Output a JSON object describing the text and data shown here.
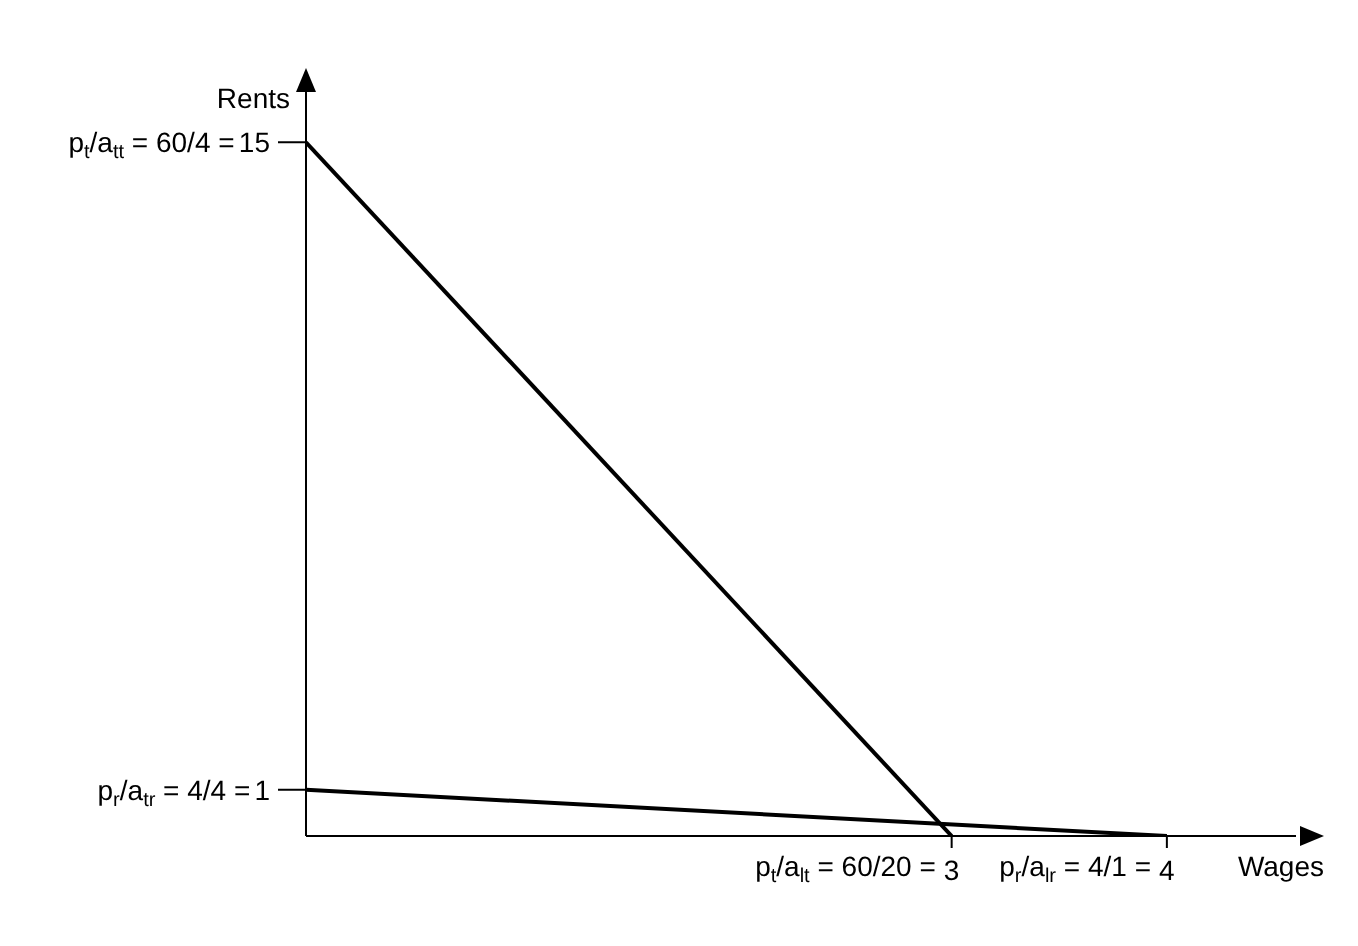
{
  "chart_data": {
    "type": "line",
    "xlabel": "Wages",
    "ylabel": "Rents",
    "xlim": [
      0,
      4.6
    ],
    "ylim": [
      0,
      16
    ],
    "xticks": [
      3,
      4
    ],
    "yticks": [
      1,
      15
    ],
    "annotations": [
      {
        "text": "p$_{t}$/a$_{tt}$ = 60/4 =",
        "x": 0,
        "y": 15
      },
      {
        "text": "p$_{r}$/a$_{tr}$ = 4/4 =",
        "x": 0,
        "y": 1
      },
      {
        "text": "p$_{t}$/a$_{lt}$ = 60/20 =",
        "x": 3,
        "y": 0
      },
      {
        "text": "p$_{r}$/a$_{lr}$ = 4/1 =",
        "x": 4,
        "y": 0
      }
    ],
    "series": [
      {
        "color": "#000000",
        "x": [
          0,
          3
        ],
        "values": [
          15,
          0
        ]
      },
      {
        "color": "#000000",
        "x": [
          0,
          4
        ],
        "values": [
          1,
          0
        ]
      }
    ],
    "marker": "none",
    "line_style": "solid"
  }
}
